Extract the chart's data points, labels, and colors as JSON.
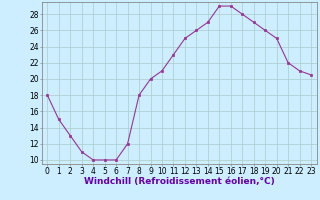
{
  "x": [
    0,
    1,
    2,
    3,
    4,
    5,
    6,
    7,
    8,
    9,
    10,
    11,
    12,
    13,
    14,
    15,
    16,
    17,
    18,
    19,
    20,
    21,
    22,
    23
  ],
  "y": [
    18,
    15,
    13,
    11,
    10,
    10,
    10,
    12,
    18,
    20,
    21,
    23,
    25,
    26,
    27,
    29,
    29,
    28,
    27,
    26,
    25,
    22,
    21,
    20.5
  ],
  "line_color": "#993399",
  "marker": "s",
  "markersize": 2.0,
  "linewidth": 0.8,
  "xlabel": "Windchill (Refroidissement éolien,°C)",
  "xlabel_fontsize": 6.5,
  "bg_color": "#cceeff",
  "grid_color": "#aacccc",
  "yticks": [
    10,
    12,
    14,
    16,
    18,
    20,
    22,
    24,
    26,
    28
  ],
  "ylim": [
    9.5,
    29.5
  ],
  "xlim": [
    -0.5,
    23.5
  ],
  "xticks": [
    0,
    1,
    2,
    3,
    4,
    5,
    6,
    7,
    8,
    9,
    10,
    11,
    12,
    13,
    14,
    15,
    16,
    17,
    18,
    19,
    20,
    21,
    22,
    23
  ],
  "tick_fontsize": 5.5,
  "spine_color": "#888888"
}
